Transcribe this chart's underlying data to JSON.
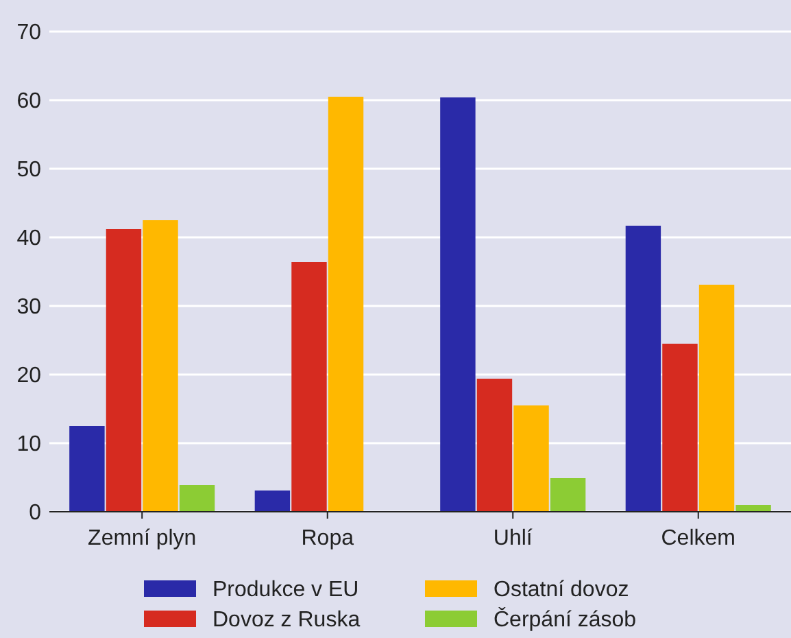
{
  "chart_data": {
    "type": "bar",
    "categories": [
      "Zemní plyn",
      "Ropa",
      "Uhlí",
      "Celkem"
    ],
    "series": [
      {
        "name": "Produkce v EU",
        "color": "#2a2aa8",
        "values": [
          12.5,
          3.1,
          60.4,
          41.7
        ]
      },
      {
        "name": "Dovoz z Ruska",
        "color": "#d62b20",
        "values": [
          41.2,
          36.4,
          19.4,
          24.5
        ]
      },
      {
        "name": "Ostatní dovoz",
        "color": "#ffb800",
        "values": [
          42.5,
          60.5,
          15.5,
          33.1
        ]
      },
      {
        "name": "Čerpání zásob",
        "color": "#8ccc34",
        "values": [
          3.9,
          null,
          4.9,
          1.0
        ]
      }
    ],
    "ylim": [
      0,
      70
    ],
    "yticks": [
      0,
      10,
      20,
      30,
      40,
      50,
      60,
      70
    ],
    "grid": "y",
    "legend": "bottom"
  }
}
